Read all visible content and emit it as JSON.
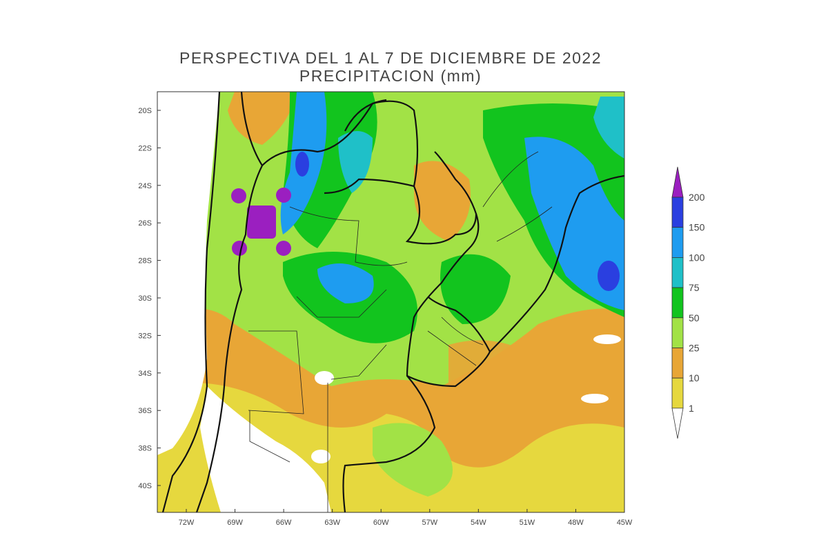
{
  "title": "PERSPECTIVA DEL 1 AL 7 DE DICIEMBRE DE 2022",
  "subtitle": "PRECIPITACION (mm)",
  "latitudes": [
    "20S",
    "22S",
    "24S",
    "26S",
    "28S",
    "30S",
    "32S",
    "34S",
    "36S",
    "38S",
    "40S"
  ],
  "longitudes": [
    "72W",
    "69W",
    "66W",
    "63W",
    "60W",
    "57W",
    "54W",
    "51W",
    "48W",
    "45W"
  ],
  "legend": [
    {
      "label": 200,
      "color": "#2a3fe0"
    },
    {
      "label": 150,
      "color": "#1e9cf0"
    },
    {
      "label": 100,
      "color": "#1fc0c8"
    },
    {
      "label": 75,
      "color": "#12c41e"
    },
    {
      "label": 50,
      "color": "#a2e246"
    },
    {
      "label": 25,
      "color": "#e8a636"
    },
    {
      "label": 10,
      "color": "#e6d83e"
    },
    {
      "label": 1,
      "color": "#ffffff"
    }
  ],
  "legend_top_color": "#9b1fc0"
}
